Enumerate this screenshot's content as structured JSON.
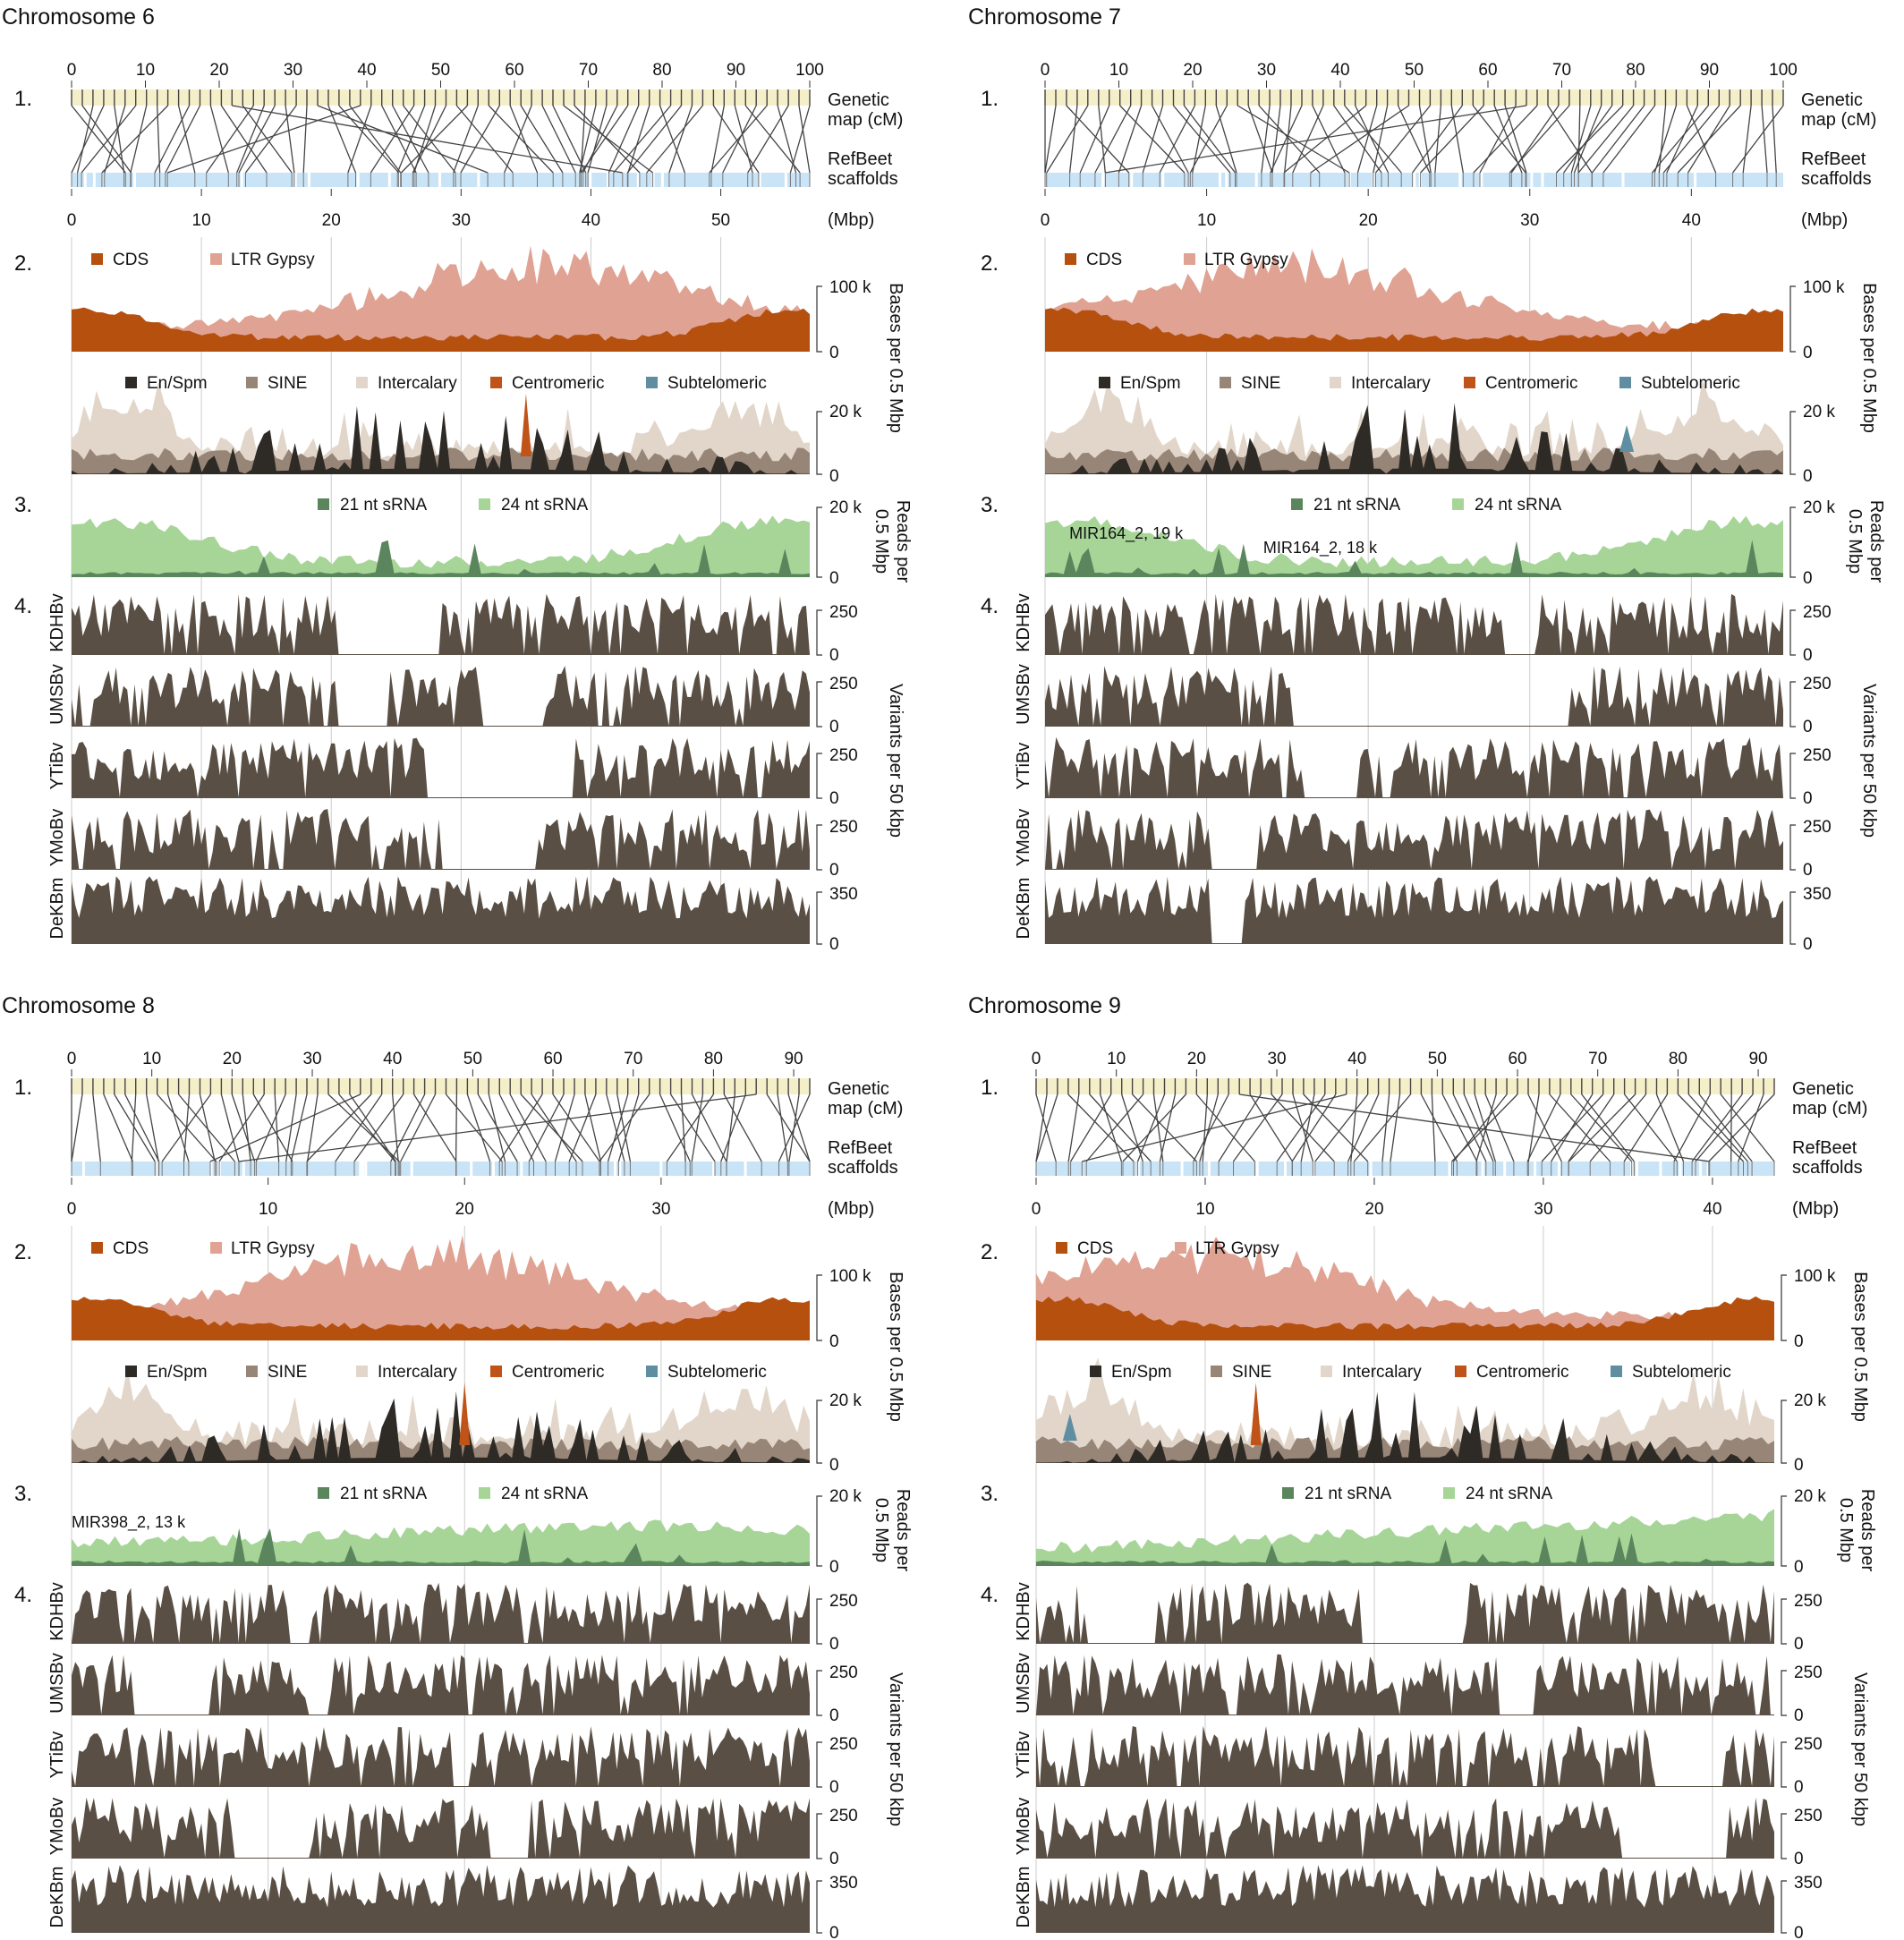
{
  "figure": {
    "colors": {
      "genetic_bar": "#f5efc9",
      "scaffold_bar": "#c9e4f6",
      "link": "#444444",
      "cds": "#b5500f",
      "ltr": "#e0a292",
      "enspm": "#2e2a26",
      "sine": "#978677",
      "intercalary": "#e1d6c9",
      "centromeric": "#c05317",
      "subtelomeric": "#5f8ea2",
      "srna21": "#5b855c",
      "srna24": "#a6d597",
      "variant": "#5a4f44",
      "grid": "#cccccc",
      "text": "#111111"
    },
    "labels": {
      "step1": "1.",
      "step2": "2.",
      "step3": "3.",
      "step4": "4.",
      "genetic_line1": "Genetic",
      "genetic_line2": "map (cM)",
      "scaffold_line1": "RefBeet",
      "scaffold_line2": "scaffolds",
      "mbp_unit": "(Mbp)",
      "bases_axis": "Bases per 0.5 Mbp",
      "reads_axis_line1": "Reads per",
      "reads_axis_line2": "0.5 Mbp",
      "variants_axis": "Variants per 50 kbp",
      "legend_cds": "CDS",
      "legend_ltr": "LTR Gypsy",
      "legend_enspm": "En/Spm",
      "legend_sine": "SINE",
      "legend_intercalary": "Intercalary",
      "legend_centromeric": "Centromeric",
      "legend_subtelomeric": "Subtelomeric",
      "legend_srna21": "21 nt sRNA",
      "legend_srna24": "24 nt sRNA",
      "tick_100k": "100 k",
      "tick_20k": "20 k",
      "tick_0": "0",
      "tick_250": "250",
      "tick_350": "350"
    },
    "accessions": [
      "KDHBv",
      "UMSBv",
      "YTiBv",
      "YMoBv",
      "DeKBm"
    ],
    "accession_max": [
      250,
      250,
      250,
      250,
      350
    ]
  },
  "chart_data": [
    {
      "type": "area",
      "title": "Chromosome 6",
      "genetic_max_cM": 100,
      "genetic_ticks": [
        0,
        10,
        20,
        30,
        40,
        50,
        60,
        70,
        80,
        90,
        100
      ],
      "physical_max_Mbp": 56,
      "physical_ticks": [
        0,
        10,
        20,
        30,
        40,
        50
      ],
      "seed": 6,
      "ltr_peak_at_Mbp": 36,
      "centromeric_peak_at_Mbp": 35,
      "subtelomeric_peak_at_Mbp": null,
      "srna24_level": "high-ends",
      "gaps": {
        "KDHBv": [
          [
            20,
            28
          ],
          [
            56,
            56
          ]
        ],
        "UMSBv": [
          [
            20,
            24
          ],
          [
            31,
            36
          ]
        ],
        "YTiBv": [
          [
            27,
            38
          ]
        ],
        "YMoBv": [
          [
            28,
            35
          ]
        ],
        "DeKBm": []
      },
      "annotations": []
    },
    {
      "type": "area",
      "title": "Chromosome 7",
      "genetic_max_cM": 100,
      "genetic_ticks": [
        0,
        10,
        20,
        30,
        40,
        50,
        60,
        70,
        80,
        90,
        100
      ],
      "physical_max_Mbp": 45,
      "physical_ticks": [
        0,
        10,
        20,
        30,
        40
      ],
      "seed": 7,
      "ltr_peak_at_Mbp": 15,
      "centromeric_peak_at_Mbp": null,
      "subtelomeric_peak_at_Mbp": 36,
      "srna24_level": "high-ends",
      "gaps": {
        "KDHBv": [
          [
            28,
            30
          ]
        ],
        "UMSBv": [
          [
            15,
            32
          ]
        ],
        "YTiBv": [
          [
            16,
            19
          ]
        ],
        "YMoBv": [
          [
            10,
            13
          ]
        ],
        "DeKBm": [
          [
            10,
            12
          ]
        ]
      },
      "annotations": [
        {
          "text": "MIR164_2, 19 k",
          "at_Mbp": 1.5
        },
        {
          "text": "MIR164_2, 18 k",
          "at_Mbp": 16
        }
      ]
    },
    {
      "type": "area",
      "title": "Chromosome 8",
      "genetic_max_cM": 92,
      "genetic_ticks": [
        0,
        10,
        20,
        30,
        40,
        50,
        60,
        70,
        80,
        90
      ],
      "physical_max_Mbp": 37,
      "physical_ticks": [
        0,
        10,
        20,
        30
      ],
      "seed": 8,
      "ltr_peak_at_Mbp": 18,
      "centromeric_peak_at_Mbp": 20,
      "subtelomeric_peak_at_Mbp": null,
      "srna24_level": "even",
      "gaps": {
        "KDHBv": [
          [
            11,
            12
          ]
        ],
        "UMSBv": [
          [
            3,
            7
          ],
          [
            12,
            13
          ]
        ],
        "YTiBv": [
          [
            19,
            20
          ]
        ],
        "YMoBv": [
          [
            8,
            12
          ],
          [
            21,
            23
          ]
        ],
        "DeKBm": []
      },
      "annotations": [
        {
          "text": "MIR398_2, 13 k",
          "at_Mbp": 0
        }
      ]
    },
    {
      "type": "area",
      "title": "Chromosome 9",
      "genetic_max_cM": 92,
      "genetic_ticks": [
        0,
        10,
        20,
        30,
        40,
        50,
        60,
        70,
        80,
        90
      ],
      "physical_max_Mbp": 43,
      "physical_ticks": [
        0,
        10,
        20,
        30,
        40
      ],
      "seed": 9,
      "ltr_peak_at_Mbp": 9,
      "centromeric_peak_at_Mbp": 13,
      "subtelomeric_peak_at_Mbp": 2,
      "srna24_level": "high-right",
      "gaps": {
        "KDHBv": [
          [
            3,
            7
          ],
          [
            19,
            25
          ]
        ],
        "UMSBv": [
          [
            27,
            29
          ]
        ],
        "YTiBv": [
          [
            36,
            40
          ]
        ],
        "YMoBv": [
          [
            34,
            40
          ]
        ],
        "DeKBm": []
      },
      "annotations": []
    }
  ]
}
